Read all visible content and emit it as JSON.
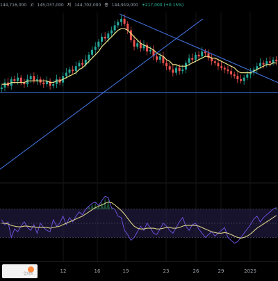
{
  "header": {
    "open_value": "144,716,000",
    "high_label": "고",
    "high_value": "145,037,000",
    "low_label": "저",
    "low_value": "144,702,000",
    "close_label": "종",
    "close_value": "144,919,000",
    "change": "+217,000 (+0.15%)"
  },
  "colors": {
    "background": "#000000",
    "candle_up": "#26a69a",
    "candle_down": "#ef5350",
    "moving_average": "#f0e68c",
    "trendline": "#3f6fd8",
    "rsi_line": "#6b4fd8",
    "rsi_signal": "#d8d08a",
    "rsi_band": "#2b2350"
  },
  "watermark": {
    "text": "업비트"
  },
  "chart_data": [
    {
      "type": "candlestick",
      "title": "",
      "x_ticks": [
        "12",
        "16",
        "19",
        "23",
        "26",
        "29",
        "2025"
      ],
      "y_scale": "hidden",
      "ylim": [
        0,
        100
      ],
      "series": [
        {
          "name": "",
          "kind": "price-line",
          "close": [
            55,
            58,
            56,
            60,
            59,
            61,
            58,
            57,
            60,
            62,
            59,
            60,
            58,
            57,
            59,
            56,
            57,
            60,
            58,
            62,
            64,
            66,
            65,
            68,
            70,
            69,
            72,
            75,
            78,
            80,
            83,
            86,
            85,
            88,
            90,
            93,
            95,
            97,
            94,
            90,
            84,
            80,
            82,
            79,
            81,
            77,
            78,
            74,
            72,
            74,
            70,
            68,
            66,
            64,
            67,
            65,
            66,
            70,
            73,
            72,
            75,
            74,
            77,
            76,
            73,
            71,
            70,
            68,
            67,
            66,
            65,
            63,
            62,
            60,
            59,
            61,
            63,
            64,
            66,
            68,
            70,
            69,
            71,
            70,
            72,
            71
          ]
        },
        {
          "name": "",
          "kind": "moving-average",
          "values": [
            57,
            57,
            57,
            58,
            58,
            58,
            58,
            58,
            59,
            59,
            59,
            59,
            59,
            59,
            59,
            58,
            58,
            59,
            59,
            60,
            61,
            62,
            63,
            64,
            66,
            67,
            69,
            71,
            73,
            75,
            77,
            80,
            82,
            84,
            86,
            88,
            90,
            91,
            91,
            90,
            88,
            86,
            84,
            82,
            81,
            80,
            79,
            78,
            76,
            75,
            74,
            72,
            71,
            69,
            69,
            68,
            68,
            68,
            69,
            70,
            71,
            72,
            73,
            74,
            74,
            73,
            73,
            72,
            71,
            70,
            69,
            68,
            67,
            65,
            64,
            64,
            64,
            64,
            65,
            66,
            67,
            68,
            69,
            69,
            70,
            70
          ]
        }
      ],
      "trendlines": [
        {
          "from": [
            0,
            5
          ],
          "to": [
            73,
            97
          ]
        },
        {
          "from": [
            43,
            100
          ],
          "to": [
            100,
            58
          ]
        },
        {
          "from": [
            0,
            52
          ],
          "to": [
            100,
            52
          ]
        }
      ]
    },
    {
      "type": "line",
      "title": "",
      "ylim": [
        0,
        100
      ],
      "bands": [
        30,
        70
      ],
      "series": [
        {
          "name": "",
          "kind": "oscillator",
          "values": [
            55,
            48,
            52,
            30,
            42,
            38,
            46,
            52,
            44,
            40,
            48,
            36,
            50,
            44,
            40,
            38,
            55,
            46,
            50,
            60,
            48,
            58,
            52,
            60,
            66,
            62,
            70,
            74,
            78,
            80,
            75,
            82,
            88,
            86,
            72,
            70,
            60,
            58,
            40,
            34,
            26,
            30,
            38,
            46,
            40,
            50,
            44,
            36,
            34,
            42,
            50,
            46,
            40,
            36,
            44,
            52,
            58,
            46,
            40,
            48,
            50,
            42,
            36,
            30,
            34,
            38,
            32,
            36,
            40,
            44,
            30,
            26,
            22,
            24,
            30,
            36,
            42,
            48,
            56,
            60,
            52,
            58,
            62,
            66,
            70,
            72
          ]
        },
        {
          "name": "",
          "kind": "signal",
          "values": [
            50,
            50,
            49,
            47,
            46,
            45,
            45,
            46,
            46,
            45,
            45,
            44,
            44,
            44,
            44,
            43,
            44,
            45,
            46,
            48,
            50,
            52,
            54,
            56,
            58,
            60,
            63,
            66,
            69,
            72,
            74,
            76,
            78,
            80,
            79,
            76,
            72,
            68,
            63,
            57,
            51,
            46,
            43,
            42,
            42,
            43,
            43,
            43,
            42,
            42,
            43,
            44,
            44,
            43,
            43,
            44,
            46,
            47,
            47,
            47,
            47,
            46,
            44,
            42,
            40,
            38,
            37,
            36,
            36,
            37,
            36,
            34,
            32,
            30,
            29,
            30,
            32,
            35,
            39,
            43,
            46,
            49,
            52,
            55,
            58,
            61
          ]
        }
      ]
    }
  ]
}
